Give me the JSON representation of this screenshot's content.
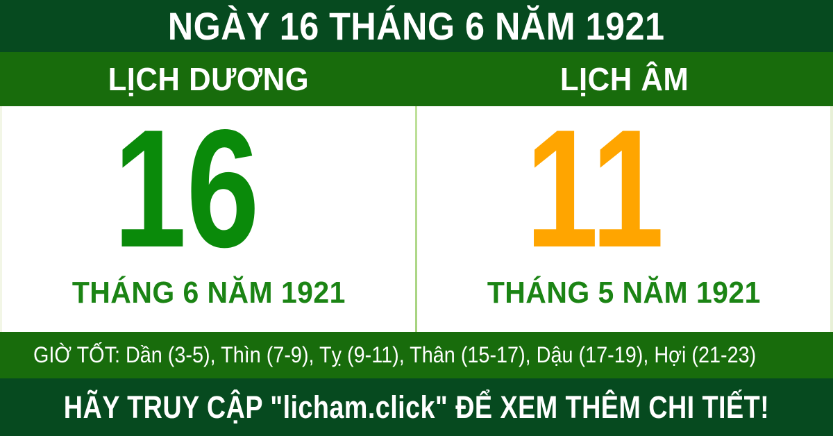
{
  "colors": {
    "header_bg": "#064A1F",
    "bar_bg": "#186C0C",
    "solar_day": "#0A8A0A",
    "lunar_day": "#FFA500",
    "month_label": "#1B8414",
    "divider": "#A6D37F",
    "text_light": "#FFFFFF"
  },
  "header": {
    "title": "NGÀY 16 THÁNG 6 NĂM 1921"
  },
  "calendar": {
    "solar": {
      "heading": "LỊCH DƯƠNG",
      "day": "16",
      "month_year": "THÁNG 6 NĂM 1921"
    },
    "lunar": {
      "heading": "LỊCH ÂM",
      "day": "11",
      "month_year": "THÁNG 5 NĂM 1921"
    }
  },
  "good_hours": {
    "label": "GIỜ TỐT:",
    "hours": [
      "Dần (3-5)",
      "Thìn (7-9)",
      "Tỵ (9-11)",
      "Thân (15-17)",
      "Dậu (17-19)",
      "Hợi (21-23)"
    ],
    "text": "GIỜ TỐT: Dần (3-5), Thìn (7-9), Tỵ (9-11), Thân (15-17), Dậu (17-19), Hợi (21-23)"
  },
  "footer": {
    "text": "HÃY TRUY CẬP \"licham.click\" ĐỂ XEM THÊM CHI TIẾT!"
  }
}
